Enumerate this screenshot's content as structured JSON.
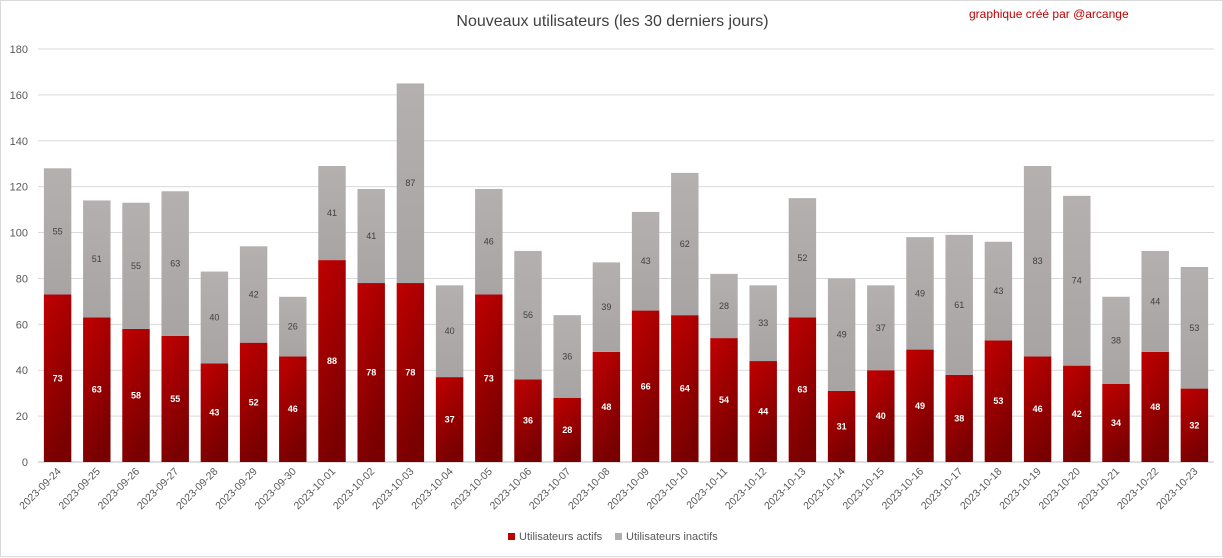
{
  "chart_data": {
    "type": "bar",
    "stacked": true,
    "title": "Nouveaux utilisateurs  (les 30 derniers  jours)",
    "credit": "graphique créé par @arcange",
    "categories": [
      "2023-09-24",
      "2023-09-25",
      "2023-09-26",
      "2023-09-27",
      "2023-09-28",
      "2023-09-29",
      "2023-09-30",
      "2023-10-01",
      "2023-10-02",
      "2023-10-03",
      "2023-10-04",
      "2023-10-05",
      "2023-10-06",
      "2023-10-07",
      "2023-10-08",
      "2023-10-09",
      "2023-10-10",
      "2023-10-11",
      "2023-10-12",
      "2023-10-13",
      "2023-10-14",
      "2023-10-15",
      "2023-10-16",
      "2023-10-17",
      "2023-10-18",
      "2023-10-19",
      "2023-10-20",
      "2023-10-21",
      "2023-10-22",
      "2023-10-23"
    ],
    "series": [
      {
        "name": "Utilisateurs actifs",
        "color": "#c00000",
        "values": [
          73,
          63,
          58,
          55,
          43,
          52,
          46,
          88,
          78,
          78,
          37,
          73,
          36,
          28,
          48,
          66,
          64,
          54,
          44,
          63,
          31,
          40,
          49,
          38,
          53,
          46,
          42,
          34,
          48,
          32
        ]
      },
      {
        "name": "Utilisateurs inactifs",
        "color": "#b2aeae",
        "values": [
          55,
          51,
          55,
          63,
          40,
          42,
          26,
          41,
          41,
          87,
          40,
          46,
          56,
          36,
          39,
          43,
          62,
          28,
          33,
          52,
          49,
          37,
          49,
          61,
          43,
          83,
          74,
          38,
          44,
          53
        ]
      }
    ],
    "ylim": [
      0,
      180
    ],
    "yticks": [
      0,
      20,
      40,
      60,
      80,
      100,
      120,
      140,
      160,
      180
    ],
    "grid": true,
    "legend": "bottom"
  }
}
